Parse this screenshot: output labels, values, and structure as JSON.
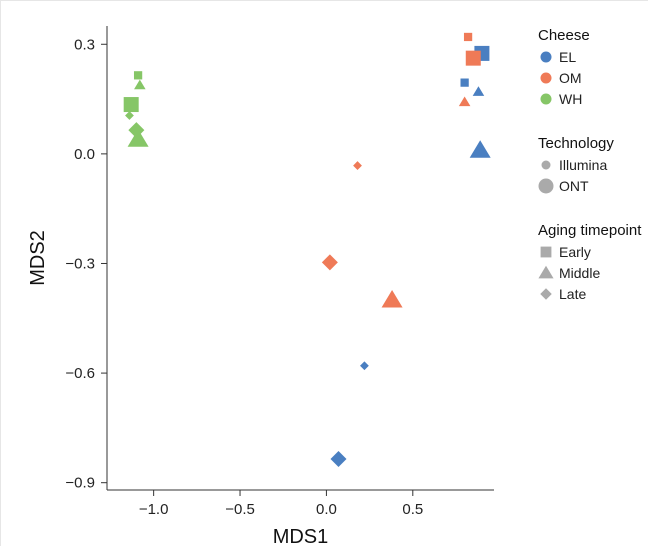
{
  "chart_data": {
    "type": "scatter",
    "title": "",
    "xlabel": "MDS1",
    "ylabel": "MDS2",
    "xlim": [
      -1.27,
      0.97
    ],
    "ylim": [
      -0.92,
      0.35
    ],
    "xticks": [
      -1.0,
      -0.5,
      0.0,
      0.5
    ],
    "xtick_labels": [
      "−1.0",
      "−0.5",
      "0.0",
      "0.5"
    ],
    "yticks": [
      0.3,
      0.0,
      -0.3,
      -0.6,
      -0.9
    ],
    "ytick_labels": [
      "0.3",
      "0.0",
      "−0.3",
      "−0.6",
      "−0.9"
    ],
    "grid": false,
    "legend_placement": "right",
    "colors": {
      "EL": "#4a7fc1",
      "OM": "#ef7a57",
      "WH": "#86c667"
    },
    "legends": [
      {
        "title": "Cheese",
        "kind": "color",
        "items": [
          {
            "label": "EL",
            "key": "EL"
          },
          {
            "label": "OM",
            "key": "OM"
          },
          {
            "label": "WH",
            "key": "WH"
          }
        ]
      },
      {
        "title": "Technology",
        "kind": "size",
        "items": [
          {
            "label": "Illumina",
            "key": "Illumina"
          },
          {
            "label": "ONT",
            "key": "ONT"
          }
        ]
      },
      {
        "title": "Aging timepoint",
        "kind": "shape",
        "items": [
          {
            "label": "Early",
            "key": "Early"
          },
          {
            "label": "Middle",
            "key": "Middle"
          },
          {
            "label": "Late",
            "key": "Late"
          }
        ]
      }
    ],
    "points": [
      {
        "cheese": "EL",
        "technology": "Illumina",
        "timepoint": "Early",
        "x": 0.8,
        "y": 0.195
      },
      {
        "cheese": "EL",
        "technology": "ONT",
        "timepoint": "Early",
        "x": 0.9,
        "y": 0.275
      },
      {
        "cheese": "EL",
        "technology": "Illumina",
        "timepoint": "Middle",
        "x": 0.88,
        "y": 0.17
      },
      {
        "cheese": "EL",
        "technology": "ONT",
        "timepoint": "Middle",
        "x": 0.89,
        "y": 0.01
      },
      {
        "cheese": "EL",
        "technology": "Illumina",
        "timepoint": "Late",
        "x": 0.22,
        "y": -0.58
      },
      {
        "cheese": "EL",
        "technology": "ONT",
        "timepoint": "Late",
        "x": 0.07,
        "y": -0.835
      },
      {
        "cheese": "OM",
        "technology": "Illumina",
        "timepoint": "Early",
        "x": 0.82,
        "y": 0.32
      },
      {
        "cheese": "OM",
        "technology": "ONT",
        "timepoint": "Early",
        "x": 0.85,
        "y": 0.262
      },
      {
        "cheese": "OM",
        "technology": "Illumina",
        "timepoint": "Middle",
        "x": 0.8,
        "y": 0.142
      },
      {
        "cheese": "OM",
        "technology": "ONT",
        "timepoint": "Middle",
        "x": 0.38,
        "y": -0.4
      },
      {
        "cheese": "OM",
        "technology": "Illumina",
        "timepoint": "Late",
        "x": 0.18,
        "y": -0.032
      },
      {
        "cheese": "OM",
        "technology": "ONT",
        "timepoint": "Late",
        "x": 0.02,
        "y": -0.297
      },
      {
        "cheese": "WH",
        "technology": "Illumina",
        "timepoint": "Early",
        "x": -1.09,
        "y": 0.215
      },
      {
        "cheese": "WH",
        "technology": "ONT",
        "timepoint": "Early",
        "x": -1.13,
        "y": 0.135
      },
      {
        "cheese": "WH",
        "technology": "Illumina",
        "timepoint": "Middle",
        "x": -1.08,
        "y": 0.188
      },
      {
        "cheese": "WH",
        "technology": "ONT",
        "timepoint": "Middle",
        "x": -1.09,
        "y": 0.04
      },
      {
        "cheese": "WH",
        "technology": "Illumina",
        "timepoint": "Late",
        "x": -1.14,
        "y": 0.105
      },
      {
        "cheese": "WH",
        "technology": "ONT",
        "timepoint": "Late",
        "x": -1.1,
        "y": 0.065
      }
    ]
  }
}
